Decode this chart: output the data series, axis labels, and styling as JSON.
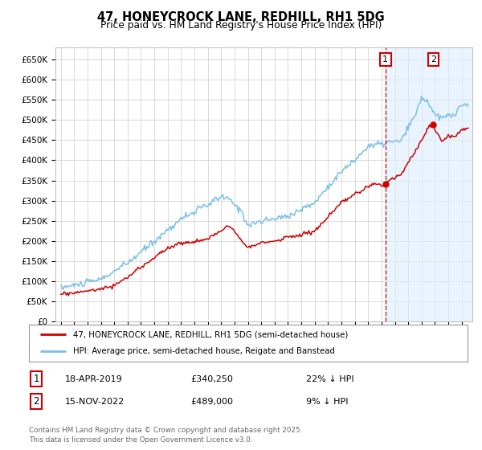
{
  "title": "47, HONEYCROCK LANE, REDHILL, RH1 5DG",
  "subtitle": "Price paid vs. HM Land Registry's House Price Index (HPI)",
  "ylabel_ticks": [
    "£0",
    "£50K",
    "£100K",
    "£150K",
    "£200K",
    "£250K",
    "£300K",
    "£350K",
    "£400K",
    "£450K",
    "£500K",
    "£550K",
    "£600K",
    "£650K"
  ],
  "ylim": [
    0,
    680000
  ],
  "ytick_values": [
    0,
    50000,
    100000,
    150000,
    200000,
    250000,
    300000,
    350000,
    400000,
    450000,
    500000,
    550000,
    600000,
    650000
  ],
  "legend_line1": "47, HONEYCROCK LANE, REDHILL, RH1 5DG (semi-detached house)",
  "legend_line2": "HPI: Average price, semi-detached house, Reigate and Banstead",
  "sale1_date": "18-APR-2019",
  "sale1_price": "£340,250",
  "sale1_hpi": "22% ↓ HPI",
  "sale2_date": "15-NOV-2022",
  "sale2_price": "£489,000",
  "sale2_hpi": "9% ↓ HPI",
  "footer": "Contains HM Land Registry data © Crown copyright and database right 2025.\nThis data is licensed under the Open Government Licence v3.0.",
  "hpi_color": "#7bbfe8",
  "price_color": "#cc0000",
  "bg_color": "#ffffff",
  "grid_color": "#cccccc",
  "highlight_color": "#ddeeff",
  "dashed_color": "#cc0000",
  "sale1_t": 2019.29,
  "sale2_t": 2022.88,
  "sale1_v": 340250,
  "sale2_v": 489000,
  "xstart": 1995.0,
  "xend": 2025.5
}
